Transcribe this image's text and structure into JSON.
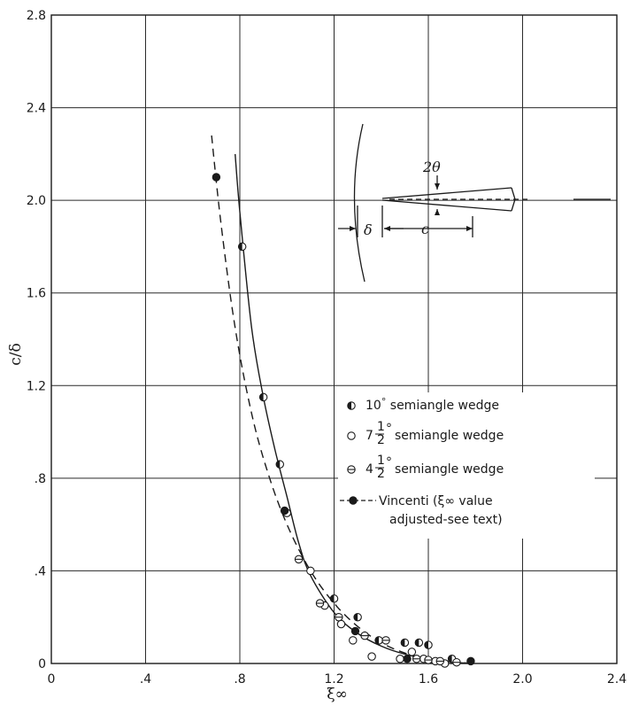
{
  "chart_data": {
    "type": "scatter",
    "xlabel": "ξ∞",
    "ylabel": "c/δ",
    "xlim": [
      0,
      2.4
    ],
    "ylim": [
      0,
      2.8
    ],
    "x_ticks": [
      0,
      0.4,
      0.8,
      1.2,
      1.6,
      2.0,
      2.4
    ],
    "x_tick_labels": [
      "0",
      ".4",
      ".8",
      "1.2",
      "1.6",
      "2.0",
      "2.4"
    ],
    "y_ticks": [
      0,
      0.4,
      0.8,
      1.2,
      1.6,
      2.0,
      2.4,
      2.8
    ],
    "y_tick_labels": [
      "0",
      ".4",
      ".8",
      "1.2",
      "1.6",
      "2.0",
      "2.4",
      "2.8"
    ],
    "grid": true,
    "legend_position": "right",
    "series": [
      {
        "name": "10° semiangle wedge",
        "legend": {
          "main": "10",
          "deg": "°",
          "rest": " semiangle wedge"
        },
        "marker": "half-left",
        "points": [
          [
            0.81,
            1.8
          ],
          [
            0.9,
            1.15
          ],
          [
            0.97,
            0.86
          ],
          [
            1.2,
            0.28
          ],
          [
            1.3,
            0.2
          ],
          [
            1.39,
            0.1
          ],
          [
            1.5,
            0.09
          ],
          [
            1.56,
            0.09
          ],
          [
            1.6,
            0.08
          ],
          [
            1.7,
            0.02
          ]
        ]
      },
      {
        "name": "7 1/2° semiangle wedge",
        "legend": {
          "whole": "7",
          "num": "1",
          "den": "2",
          "deg": "°",
          "rest": "semiangle wedge"
        },
        "marker": "open",
        "points": [
          [
            1.0,
            0.65
          ],
          [
            1.1,
            0.4
          ],
          [
            1.16,
            0.25
          ],
          [
            1.23,
            0.17
          ],
          [
            1.28,
            0.1
          ],
          [
            1.36,
            0.03
          ],
          [
            1.48,
            0.02
          ],
          [
            1.53,
            0.05
          ],
          [
            1.58,
            0.02
          ],
          [
            1.63,
            0.01
          ],
          [
            1.67,
            0.0
          ]
        ]
      },
      {
        "name": "4 1/2° semiangle wedge",
        "legend": {
          "whole": "4",
          "num": "1",
          "den": "2",
          "deg": "°",
          "rest": "semiangle wedge"
        },
        "marker": "half-bottom",
        "points": [
          [
            1.05,
            0.45
          ],
          [
            1.14,
            0.26
          ],
          [
            1.22,
            0.2
          ],
          [
            1.33,
            0.12
          ],
          [
            1.42,
            0.1
          ],
          [
            1.55,
            0.02
          ],
          [
            1.6,
            0.015
          ],
          [
            1.65,
            0.01
          ],
          [
            1.72,
            0.005
          ]
        ]
      },
      {
        "name": "Vincenti (ξ∞ value adjusted-see text)",
        "legend": {
          "line1": "Vincenti (ξ∞ value",
          "line2": "adjusted-see text)"
        },
        "marker": "filled",
        "line": "dashed",
        "points": [
          [
            0.7,
            2.1
          ],
          [
            0.99,
            0.66
          ],
          [
            1.29,
            0.14
          ],
          [
            1.51,
            0.02
          ],
          [
            1.78,
            0.01
          ]
        ]
      }
    ],
    "curves": [
      {
        "style": "solid",
        "points": [
          [
            0.78,
            2.2
          ],
          [
            0.8,
            1.95
          ],
          [
            0.85,
            1.45
          ],
          [
            0.9,
            1.15
          ],
          [
            0.95,
            0.92
          ],
          [
            1.0,
            0.72
          ],
          [
            1.05,
            0.52
          ],
          [
            1.1,
            0.38
          ],
          [
            1.2,
            0.22
          ],
          [
            1.3,
            0.13
          ],
          [
            1.4,
            0.075
          ],
          [
            1.5,
            0.04
          ],
          [
            1.6,
            0.018
          ],
          [
            1.7,
            0.006
          ],
          [
            1.78,
            0.0
          ]
        ]
      },
      {
        "style": "dashed",
        "points": [
          [
            0.68,
            2.28
          ],
          [
            0.72,
            1.9
          ],
          [
            0.78,
            1.45
          ],
          [
            0.85,
            1.08
          ],
          [
            0.92,
            0.82
          ],
          [
            1.0,
            0.6
          ],
          [
            1.1,
            0.4
          ],
          [
            1.2,
            0.26
          ],
          [
            1.3,
            0.16
          ],
          [
            1.4,
            0.09
          ],
          [
            1.5,
            0.045
          ],
          [
            1.6,
            0.018
          ],
          [
            1.7,
            0.006
          ],
          [
            1.8,
            0.0
          ]
        ]
      }
    ],
    "inset_labels": {
      "angle": "2θ",
      "offset": "δ",
      "chord": "c"
    }
  }
}
